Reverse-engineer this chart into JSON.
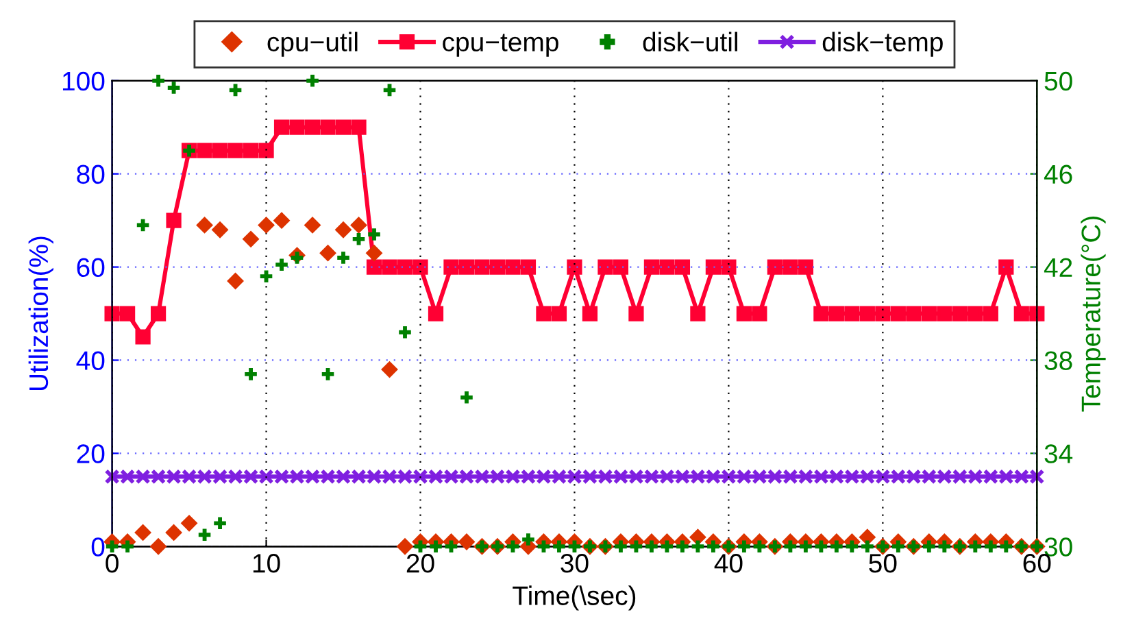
{
  "chart_data": {
    "type": "line",
    "xlabel": "Time(\\sec)",
    "ylabel": "Utilization(%)",
    "y2label": "Temperature(°C)",
    "x": [
      0,
      1,
      2,
      3,
      4,
      5,
      6,
      7,
      8,
      9,
      10,
      11,
      12,
      13,
      14,
      15,
      16,
      17,
      18,
      19,
      20,
      21,
      22,
      23,
      24,
      25,
      26,
      27,
      28,
      29,
      30,
      31,
      32,
      33,
      34,
      35,
      36,
      37,
      38,
      39,
      40,
      41,
      42,
      43,
      44,
      45,
      46,
      47,
      48,
      49,
      50,
      51,
      52,
      53,
      54,
      55,
      56,
      57,
      58,
      59,
      60
    ],
    "xlim": [
      0,
      60
    ],
    "xticks": [
      0,
      10,
      20,
      30,
      40,
      50,
      60
    ],
    "ylim": [
      0,
      100
    ],
    "yticks": [
      0,
      20,
      40,
      60,
      80,
      100
    ],
    "y2lim": [
      30,
      50
    ],
    "y2ticks": [
      30,
      34,
      38,
      42,
      46,
      50
    ],
    "grid": true,
    "legend": "top",
    "series": [
      {
        "name": "cpu−util",
        "type": "scatter",
        "marker": "diamond",
        "color": "#dd3300",
        "values": [
          1,
          1,
          3,
          0,
          3,
          5,
          69,
          68,
          57,
          66,
          69,
          70,
          62.5,
          69,
          63,
          68,
          69,
          63,
          38,
          0,
          1,
          1,
          1,
          1,
          0,
          0,
          1,
          0,
          1,
          1,
          1,
          0,
          0,
          1,
          1,
          1,
          1,
          1,
          2,
          1,
          0,
          1,
          1,
          0,
          1,
          1,
          1,
          1,
          1,
          2,
          0,
          1,
          0,
          1,
          1,
          0,
          1,
          1,
          1,
          0,
          0
        ]
      },
      {
        "name": "cpu−temp",
        "marker": "square",
        "line_style": "solid",
        "axis": "y2",
        "color": "#ff0033",
        "values": [
          40,
          40,
          39,
          40,
          44,
          47,
          47,
          47,
          47,
          47,
          47,
          48,
          48,
          48,
          48,
          48,
          48,
          42,
          42,
          42,
          42,
          40,
          42,
          42,
          42,
          42,
          42,
          42,
          40,
          40,
          42,
          40,
          42,
          42,
          40,
          42,
          42,
          42,
          40,
          42,
          42,
          40,
          40,
          42,
          42,
          42,
          40,
          40,
          40,
          40,
          40,
          40,
          40,
          40,
          40,
          40,
          40,
          40,
          42,
          40,
          40
        ]
      },
      {
        "name": "disk−util",
        "type": "scatter",
        "marker": "plus",
        "color": "#008000",
        "values": [
          0,
          0,
          69,
          100,
          98.5,
          85,
          2.5,
          5,
          98,
          37,
          58,
          60.5,
          62,
          100,
          37,
          62,
          66,
          67,
          98,
          46,
          0,
          0,
          0,
          32,
          0,
          0,
          0,
          1.5,
          0,
          0,
          0,
          0,
          0,
          0,
          0,
          0,
          0,
          0,
          0,
          0,
          0,
          0,
          0,
          0,
          0,
          0,
          0,
          0,
          0,
          0,
          0,
          0,
          0,
          0,
          0,
          0,
          0,
          0,
          0,
          0,
          0
        ]
      },
      {
        "name": "disk−temp",
        "marker": "cross",
        "line_style": "solid",
        "axis": "y2",
        "color": "#7f1fe0",
        "values": [
          33,
          33,
          33,
          33,
          33,
          33,
          33,
          33,
          33,
          33,
          33,
          33,
          33,
          33,
          33,
          33,
          33,
          33,
          33,
          33,
          33,
          33,
          33,
          33,
          33,
          33,
          33,
          33,
          33,
          33,
          33,
          33,
          33,
          33,
          33,
          33,
          33,
          33,
          33,
          33,
          33,
          33,
          33,
          33,
          33,
          33,
          33,
          33,
          33,
          33,
          33,
          33,
          33,
          33,
          33,
          33,
          33,
          33,
          33,
          33,
          33
        ]
      }
    ]
  }
}
